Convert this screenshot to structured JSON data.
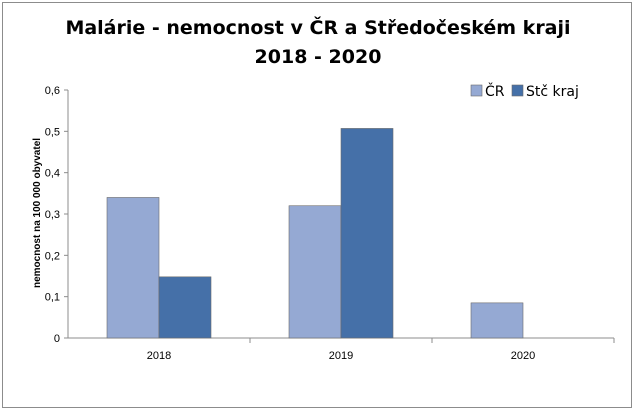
{
  "chart_data": {
    "type": "bar",
    "title": "Malárie - nemocnost v ČR a Středočeském kraji",
    "subtitle": "2018 - 2020",
    "ylabel": "nemocnost na 100 000 obyvatel",
    "xlabel": "",
    "categories": [
      "2018",
      "2019",
      "2020"
    ],
    "yticks": [
      "0",
      "0,1",
      "0,2",
      "0,3",
      "0,4",
      "0,5",
      "0,6"
    ],
    "ylim": [
      0,
      0.6
    ],
    "grid": false,
    "legend_position": "top-right",
    "series": [
      {
        "name": "ČR",
        "color": "#95a9d3",
        "values": [
          0.34,
          0.32,
          0.085
        ]
      },
      {
        "name": "Stč kraj",
        "color": "#4570a8",
        "values": [
          0.148,
          0.507,
          0
        ]
      }
    ]
  }
}
